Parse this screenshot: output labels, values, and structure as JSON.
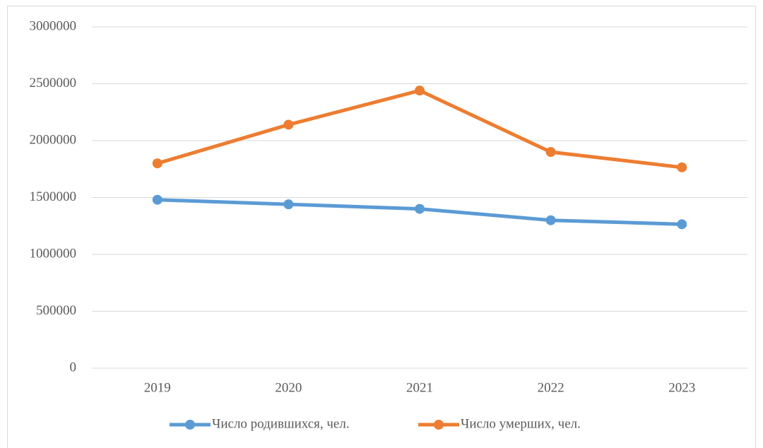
{
  "chart_data": {
    "type": "line",
    "categories": [
      "2019",
      "2020",
      "2021",
      "2022",
      "2023"
    ],
    "series": [
      {
        "name": "Число родившихся, чел.",
        "color": "#5b9bd5",
        "values": [
          1480000,
          1440000,
          1400000,
          1300000,
          1265000
        ]
      },
      {
        "name": "Число умерших, чел.",
        "color": "#ed7d31",
        "values": [
          1800000,
          2140000,
          2440000,
          1900000,
          1765000
        ]
      }
    ],
    "ylim": [
      0,
      3000000
    ],
    "yticks": [
      0,
      500000,
      1000000,
      1500000,
      2000000,
      2500000,
      3000000
    ],
    "grid": true,
    "legend": "bottom"
  }
}
